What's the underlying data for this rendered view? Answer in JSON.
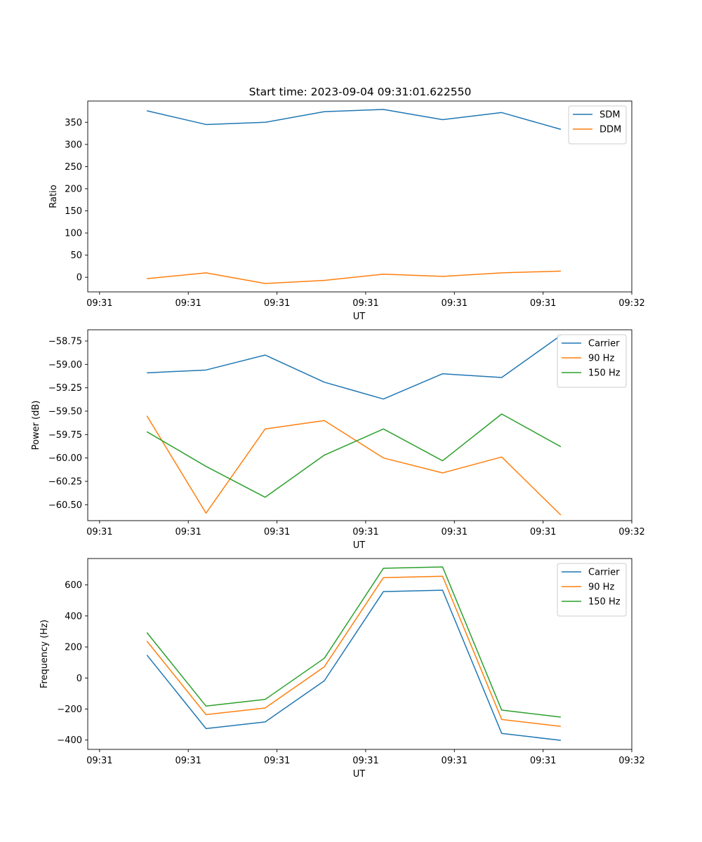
{
  "figure": {
    "title": "Start time: 2023-09-04 09:31:01.622550"
  },
  "chart_data": [
    {
      "type": "line",
      "title": "Start time: 2023-09-04 09:31:01.622550",
      "xlabel": "UT",
      "ylabel": "Ratio",
      "x": [
        1,
        2,
        3,
        4,
        5,
        6,
        7,
        8
      ],
      "xlim": [
        0,
        9.2
      ],
      "xticks": [
        0.2,
        1.7,
        3.2,
        4.7,
        6.2,
        7.7,
        9.2
      ],
      "xtick_labels": [
        "09:31",
        "09:31",
        "09:31",
        "09:31",
        "09:31",
        "09:31",
        "09:32"
      ],
      "ylim": [
        -33,
        398
      ],
      "yticks": [
        0,
        50,
        100,
        150,
        200,
        250,
        300,
        350
      ],
      "ytick_labels": [
        "0",
        "50",
        "100",
        "150",
        "200",
        "250",
        "300",
        "350"
      ],
      "legend": "top-right",
      "series": [
        {
          "name": "SDM",
          "color": "#1f77b4",
          "values": [
            376,
            345,
            350,
            374,
            379,
            356,
            372,
            334
          ]
        },
        {
          "name": "DDM",
          "color": "#ff7f0e",
          "values": [
            -3,
            10,
            -14,
            -7,
            7,
            2,
            10,
            14
          ]
        }
      ]
    },
    {
      "type": "line",
      "xlabel": "UT",
      "ylabel": "Power (dB)",
      "x": [
        1,
        2,
        3,
        4,
        5,
        6,
        7,
        8
      ],
      "xlim": [
        0,
        9.2
      ],
      "xticks": [
        0.2,
        1.7,
        3.2,
        4.7,
        6.2,
        7.7,
        9.2
      ],
      "xtick_labels": [
        "09:31",
        "09:31",
        "09:31",
        "09:31",
        "09:31",
        "09:31",
        "09:32"
      ],
      "ylim": [
        -60.67,
        -58.63
      ],
      "yticks": [
        -60.5,
        -60.25,
        -60.0,
        -59.75,
        -59.5,
        -59.25,
        -59.0,
        -58.75
      ],
      "ytick_labels": [
        "−60.50",
        "−60.25",
        "−60.00",
        "−59.75",
        "−59.50",
        "−59.25",
        "−59.00",
        "−58.75"
      ],
      "legend": "top-right",
      "series": [
        {
          "name": "Carrier",
          "color": "#1f77b4",
          "values": [
            -59.09,
            -59.06,
            -58.9,
            -59.19,
            -59.37,
            -59.1,
            -59.14,
            -58.69
          ]
        },
        {
          "name": "90 Hz",
          "color": "#ff7f0e",
          "values": [
            -59.55,
            -60.59,
            -59.69,
            -59.6,
            -60.0,
            -60.16,
            -59.99,
            -60.61
          ]
        },
        {
          "name": "150 Hz",
          "color": "#2ca02c",
          "values": [
            -59.72,
            -60.09,
            -60.42,
            -59.97,
            -59.69,
            -60.03,
            -59.53,
            -59.88
          ]
        }
      ]
    },
    {
      "type": "line",
      "xlabel": "UT",
      "ylabel": "Frequency (Hz)",
      "x": [
        1,
        2,
        3,
        4,
        5,
        6,
        7,
        8
      ],
      "xlim": [
        0,
        9.2
      ],
      "xticks": [
        0.2,
        1.7,
        3.2,
        4.7,
        6.2,
        7.7,
        9.2
      ],
      "xtick_labels": [
        "09:31",
        "09:31",
        "09:31",
        "09:31",
        "09:31",
        "09:31",
        "09:32"
      ],
      "ylim": [
        -460,
        770
      ],
      "yticks": [
        -400,
        -200,
        0,
        200,
        400,
        600
      ],
      "ytick_labels": [
        "−400",
        "−200",
        "0",
        "200",
        "400",
        "600"
      ],
      "legend": "top-right",
      "series": [
        {
          "name": "Carrier",
          "color": "#1f77b4",
          "values": [
            148,
            -326,
            -283,
            -18,
            557,
            566,
            -357,
            -402
          ]
        },
        {
          "name": "90 Hz",
          "color": "#ff7f0e",
          "values": [
            238,
            -236,
            -193,
            72,
            647,
            656,
            -267,
            -312
          ]
        },
        {
          "name": "150 Hz",
          "color": "#2ca02c",
          "values": [
            293,
            -181,
            -138,
            127,
            707,
            716,
            -207,
            -252
          ]
        }
      ]
    }
  ]
}
